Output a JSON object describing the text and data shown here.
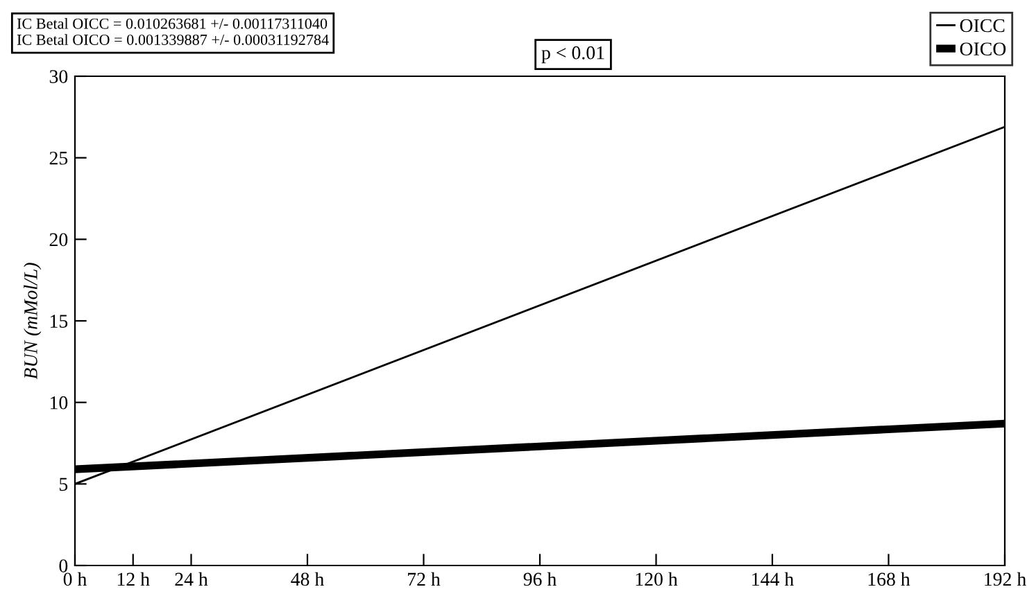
{
  "chart_data": {
    "type": "line",
    "x": [
      0,
      192
    ],
    "series": [
      {
        "name": "OICC",
        "color": "#000000",
        "values": [
          5.0,
          26.9
        ]
      },
      {
        "name": "OICO",
        "color": "#000000",
        "values": [
          5.9,
          8.7
        ]
      }
    ],
    "ylabel": "BUN (mMol/L)",
    "annotations": [
      "IC Betal OICC = 0.010263681 +/- 0.00117311040\nIC Betal OICO = 0.001339887 +/- 0.00031192784",
      "p < 0.01"
    ],
    "xlim": [
      0,
      192
    ],
    "xticks": [
      {
        "value": 0,
        "label": "0 h"
      },
      {
        "value": 12,
        "label": "12 h"
      },
      {
        "value": 24,
        "label": "24 h"
      },
      {
        "value": 48,
        "label": "48 h"
      },
      {
        "value": 72,
        "label": "72 h"
      },
      {
        "value": 96,
        "label": "96 h"
      },
      {
        "value": 120,
        "label": "120 h"
      },
      {
        "value": 144,
        "label": "144 h"
      },
      {
        "value": 168,
        "label": "168 h"
      },
      {
        "value": 192,
        "label": "192 h"
      }
    ],
    "ylim": [
      0,
      30
    ],
    "yticks": [
      0,
      5,
      10,
      15,
      20,
      25,
      30
    ],
    "grid": false,
    "legend": "top right",
    "marker": "none",
    "line_style": "solid"
  }
}
